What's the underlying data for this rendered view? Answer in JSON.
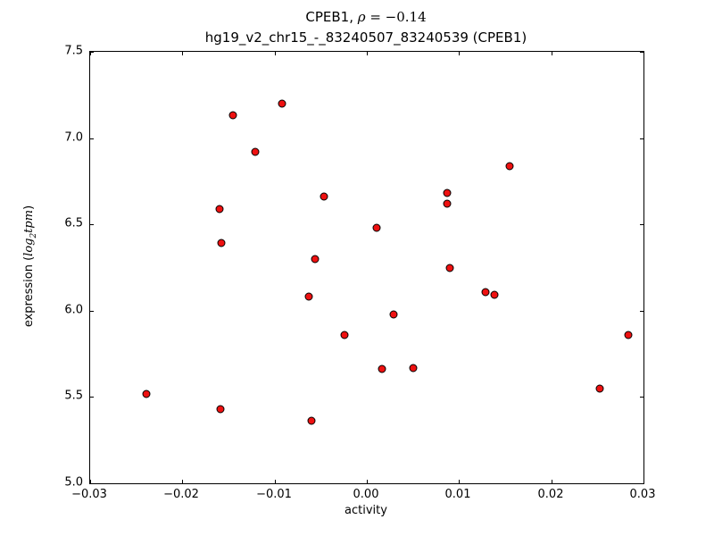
{
  "figure": {
    "title_prefix": "CPEB1, ",
    "title_rho": "ρ",
    "title_eq": " = −0.14",
    "subtitle": "hg19_v2_chr15_-_83240507_83240539 (CPEB1)",
    "xlabel": "activity",
    "ylabel_prefix": "expression (",
    "ylabel_math_base": "log",
    "ylabel_math_sub": "2",
    "ylabel_math_rest": "tpm",
    "ylabel_suffix": ")"
  },
  "chart_data": {
    "type": "scatter",
    "title": "CPEB1, ρ = −0.14",
    "subtitle": "hg19_v2_chr15_-_83240507_83240539 (CPEB1)",
    "xlabel": "activity",
    "ylabel": "expression (log2 tpm)",
    "xlim": [
      -0.03,
      0.03
    ],
    "ylim": [
      5.0,
      7.5
    ],
    "grid": false,
    "legend": null,
    "marker_color": "#ee1111",
    "marker_edge_color": "#000000",
    "x_ticks": [
      -0.03,
      -0.02,
      -0.01,
      0.0,
      0.01,
      0.02,
      0.03
    ],
    "x_tick_labels": [
      "−0.03",
      "−0.02",
      "−0.01",
      "0.00",
      "0.01",
      "0.02",
      "0.03"
    ],
    "y_ticks": [
      5.0,
      5.5,
      6.0,
      6.5,
      7.0,
      7.5
    ],
    "y_tick_labels": [
      "5.0",
      "5.5",
      "6.0",
      "6.5",
      "7.0",
      "7.5"
    ],
    "points": [
      [
        -0.0145,
        7.13
      ],
      [
        -0.0092,
        7.2
      ],
      [
        -0.0121,
        6.92
      ],
      [
        0.0155,
        6.84
      ],
      [
        -0.0046,
        6.66
      ],
      [
        0.0087,
        6.68
      ],
      [
        0.0087,
        6.62
      ],
      [
        -0.016,
        6.59
      ],
      [
        0.0011,
        6.48
      ],
      [
        -0.0158,
        6.39
      ],
      [
        -0.0056,
        6.3
      ],
      [
        0.009,
        6.25
      ],
      [
        -0.0063,
        6.08
      ],
      [
        0.0129,
        6.11
      ],
      [
        0.0138,
        6.09
      ],
      [
        0.0029,
        5.98
      ],
      [
        -0.0024,
        5.86
      ],
      [
        0.0284,
        5.86
      ],
      [
        0.0016,
        5.66
      ],
      [
        0.005,
        5.67
      ],
      [
        -0.0239,
        5.52
      ],
      [
        0.0253,
        5.55
      ],
      [
        -0.0159,
        5.43
      ],
      [
        -0.006,
        5.36
      ]
    ]
  }
}
